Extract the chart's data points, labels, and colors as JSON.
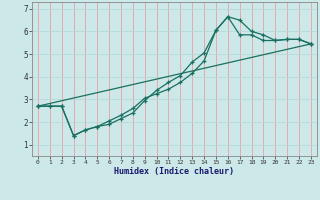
{
  "xlabel": "Humidex (Indice chaleur)",
  "xlim": [
    -0.5,
    23.5
  ],
  "ylim": [
    0.5,
    7.3
  ],
  "background_color": "#cde8e8",
  "grid_color_v": "#e8a0a0",
  "grid_color_h": "#b8d8d8",
  "line_color": "#1a7060",
  "xticks": [
    0,
    1,
    2,
    3,
    4,
    5,
    6,
    7,
    8,
    9,
    10,
    11,
    12,
    13,
    14,
    15,
    16,
    17,
    18,
    19,
    20,
    21,
    22,
    23
  ],
  "yticks": [
    1,
    2,
    3,
    4,
    5,
    6,
    7
  ],
  "line1_x": [
    0,
    1,
    2,
    3,
    4,
    5,
    6,
    7,
    8,
    9,
    10,
    11,
    12,
    13,
    14,
    15,
    16,
    17,
    18,
    19,
    20,
    21,
    22,
    23
  ],
  "line1_y": [
    2.7,
    2.7,
    2.7,
    1.4,
    1.65,
    1.8,
    1.9,
    2.15,
    2.4,
    2.95,
    3.4,
    3.75,
    4.05,
    4.65,
    5.05,
    6.05,
    6.65,
    6.5,
    6.0,
    5.85,
    5.6,
    5.65,
    5.65,
    5.45
  ],
  "line2_x": [
    0,
    1,
    2,
    3,
    4,
    5,
    6,
    7,
    8,
    9,
    10,
    11,
    12,
    13,
    14,
    15,
    16,
    17,
    18,
    19,
    20,
    21,
    22,
    23
  ],
  "line2_y": [
    2.7,
    2.7,
    2.7,
    1.4,
    1.65,
    1.8,
    2.05,
    2.3,
    2.6,
    3.05,
    3.25,
    3.45,
    3.75,
    4.15,
    4.7,
    6.05,
    6.65,
    5.85,
    5.85,
    5.6,
    5.6,
    5.65,
    5.65,
    5.45
  ],
  "line3_x": [
    0,
    23
  ],
  "line3_y": [
    2.7,
    5.45
  ]
}
